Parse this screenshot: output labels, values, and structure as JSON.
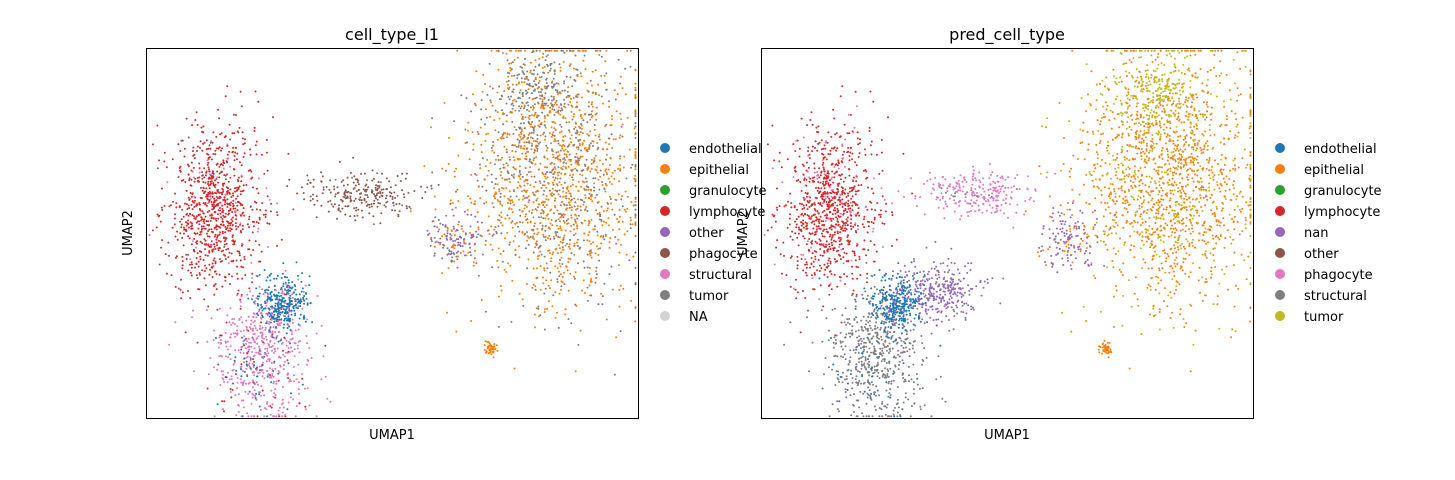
{
  "chart_data": [
    {
      "type": "scatter",
      "title": "cell_type_l1",
      "xlabel": "UMAP1",
      "ylabel": "UMAP2",
      "grid": false,
      "ticks": false,
      "legend_position": "right",
      "legend": [
        {
          "name": "endothelial",
          "color": "#1f77b4"
        },
        {
          "name": "epithelial",
          "color": "#ff7f0e"
        },
        {
          "name": "granulocyte",
          "color": "#2ca02c"
        },
        {
          "name": "lymphocyte",
          "color": "#d62728"
        },
        {
          "name": "other",
          "color": "#9467bd"
        },
        {
          "name": "phagocyte",
          "color": "#8c564b"
        },
        {
          "name": "structural",
          "color": "#e377c2"
        },
        {
          "name": "tumor",
          "color": "#7f7f7f"
        },
        {
          "name": "NA",
          "color": "#d3d3d3"
        }
      ],
      "clusters": [
        {
          "label": "lymphocyte",
          "x": 0.14,
          "y": 0.57,
          "sx": 0.05,
          "sy": 0.11,
          "n": 900,
          "mix": {
            "lymphocyte": 0.9,
            "phagocyte": 0.05,
            "structural": 0.05
          }
        },
        {
          "label": "structural",
          "x": 0.23,
          "y": 0.17,
          "sx": 0.05,
          "sy": 0.09,
          "n": 600,
          "mix": {
            "structural": 0.8,
            "endothelial": 0.1,
            "lymphocyte": 0.1
          }
        },
        {
          "label": "endothelial",
          "x": 0.275,
          "y": 0.31,
          "sx": 0.025,
          "sy": 0.04,
          "n": 350,
          "mix": {
            "endothelial": 0.85,
            "structural": 0.15
          }
        },
        {
          "label": "phagocyte",
          "x": 0.43,
          "y": 0.61,
          "sx": 0.06,
          "sy": 0.03,
          "n": 250,
          "mix": {
            "phagocyte": 0.9,
            "tumor": 0.1
          }
        },
        {
          "label": "epithelial",
          "x": 0.83,
          "y": 0.65,
          "sx": 0.09,
          "sy": 0.17,
          "n": 1600,
          "mix": {
            "epithelial": 0.65,
            "tumor": 0.33,
            "other": 0.02
          }
        },
        {
          "label": "tumor",
          "x": 0.8,
          "y": 0.88,
          "sx": 0.04,
          "sy": 0.06,
          "n": 250,
          "mix": {
            "tumor": 0.75,
            "epithelial": 0.25
          }
        },
        {
          "label": "other",
          "x": 0.63,
          "y": 0.48,
          "sx": 0.03,
          "sy": 0.04,
          "n": 150,
          "mix": {
            "other": 0.5,
            "epithelial": 0.3,
            "tumor": 0.2
          }
        },
        {
          "label": "epithelial",
          "x": 0.7,
          "y": 0.19,
          "sx": 0.006,
          "sy": 0.01,
          "n": 45,
          "mix": {
            "epithelial": 1.0
          }
        }
      ]
    },
    {
      "type": "scatter",
      "title": "pred_cell_type",
      "xlabel": "UMAP1",
      "ylabel": "UMAP2",
      "grid": false,
      "ticks": false,
      "legend_position": "right",
      "legend": [
        {
          "name": "endothelial",
          "color": "#1f77b4"
        },
        {
          "name": "epithelial",
          "color": "#ff7f0e"
        },
        {
          "name": "granulocyte",
          "color": "#2ca02c"
        },
        {
          "name": "lymphocyte",
          "color": "#d62728"
        },
        {
          "name": "nan",
          "color": "#9467bd"
        },
        {
          "name": "other",
          "color": "#8c564b"
        },
        {
          "name": "phagocyte",
          "color": "#e377c2"
        },
        {
          "name": "structural",
          "color": "#7f7f7f"
        },
        {
          "name": "tumor",
          "color": "#bcbd22"
        }
      ],
      "clusters": [
        {
          "label": "lymphocyte",
          "x": 0.14,
          "y": 0.57,
          "sx": 0.05,
          "sy": 0.11,
          "n": 900,
          "mix": {
            "lymphocyte": 0.9,
            "phagocyte": 0.1
          }
        },
        {
          "label": "structural",
          "x": 0.23,
          "y": 0.17,
          "sx": 0.05,
          "sy": 0.09,
          "n": 600,
          "mix": {
            "structural": 0.85,
            "endothelial": 0.1,
            "nan": 0.05
          }
        },
        {
          "label": "endothelial",
          "x": 0.275,
          "y": 0.31,
          "sx": 0.025,
          "sy": 0.04,
          "n": 350,
          "mix": {
            "endothelial": 0.85,
            "nan": 0.15
          }
        },
        {
          "label": "nan",
          "x": 0.36,
          "y": 0.35,
          "sx": 0.04,
          "sy": 0.04,
          "n": 300,
          "mix": {
            "nan": 0.9,
            "structural": 0.1
          }
        },
        {
          "label": "phagocyte",
          "x": 0.43,
          "y": 0.61,
          "sx": 0.06,
          "sy": 0.03,
          "n": 250,
          "mix": {
            "phagocyte": 0.95,
            "structural": 0.05
          }
        },
        {
          "label": "epithelial",
          "x": 0.83,
          "y": 0.65,
          "sx": 0.09,
          "sy": 0.17,
          "n": 1600,
          "mix": {
            "epithelial": 0.75,
            "tumor": 0.25
          }
        },
        {
          "label": "tumor",
          "x": 0.8,
          "y": 0.88,
          "sx": 0.04,
          "sy": 0.06,
          "n": 250,
          "mix": {
            "tumor": 0.9,
            "epithelial": 0.1
          }
        },
        {
          "label": "nan",
          "x": 0.63,
          "y": 0.48,
          "sx": 0.03,
          "sy": 0.04,
          "n": 150,
          "mix": {
            "nan": 0.8,
            "epithelial": 0.2
          }
        },
        {
          "label": "epithelial",
          "x": 0.7,
          "y": 0.19,
          "sx": 0.006,
          "sy": 0.01,
          "n": 45,
          "mix": {
            "epithelial": 1.0
          }
        }
      ]
    }
  ]
}
